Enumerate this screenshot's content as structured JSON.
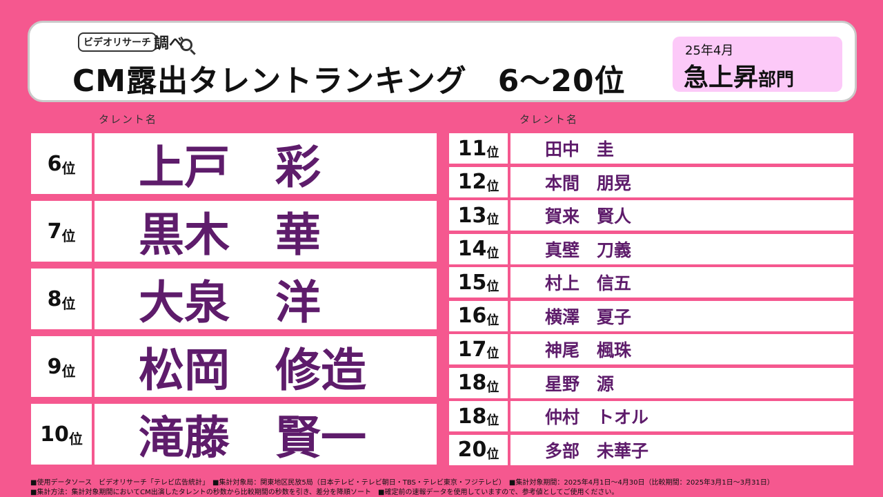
{
  "header": {
    "logo_text": "ビデオリサーチ",
    "logo_mark": "調べ",
    "title": "CM露出タレントランキング　6～20位",
    "period": "25年4月",
    "category_main": "急上昇",
    "category_sub": "部門"
  },
  "columns": {
    "left_label": "タレント名",
    "right_label": "タレント名"
  },
  "rank_suffix": "位",
  "top_ranks": [
    {
      "rank": "6",
      "name": "上戸　彩"
    },
    {
      "rank": "7",
      "name": "黒木　華"
    },
    {
      "rank": "8",
      "name": "大泉　洋"
    },
    {
      "rank": "9",
      "name": "松岡　修造"
    },
    {
      "rank": "10",
      "name": "滝藤　賢一"
    }
  ],
  "other_ranks": [
    {
      "rank": "11",
      "name": "田中　圭"
    },
    {
      "rank": "12",
      "name": "本間　朋晃"
    },
    {
      "rank": "13",
      "name": "賀来　賢人"
    },
    {
      "rank": "14",
      "name": "真壁　刀義"
    },
    {
      "rank": "15",
      "name": "村上　信五"
    },
    {
      "rank": "16",
      "name": "横澤　夏子"
    },
    {
      "rank": "17",
      "name": "神尾　楓珠"
    },
    {
      "rank": "18",
      "name": "星野　源"
    },
    {
      "rank": "18",
      "name": "仲村　トオル"
    },
    {
      "rank": "20",
      "name": "多部　未華子"
    }
  ],
  "footnotes": [
    "■使用データソース　ビデオリサーチ「テレビ広告統計」　■集計対象局：関東地区民放5局（日本テレビ・テレビ朝日・TBS・テレビ東京・フジテレビ）　■集計対象期間：2025年4月1日～4月30日（比較期間：2025年3月1日～3月31日）",
    "■集計方法：集計対象期間においてCM出演したタレントの秒数から比較期間の秒数を引き、差分を降順ソート　■確定前の速報データを使用していますので、参考値としてご使用ください。"
  ],
  "colors": {
    "background": "#f5588f",
    "name_text": "#5e1c6b",
    "category_box": "#fcc9f8"
  }
}
